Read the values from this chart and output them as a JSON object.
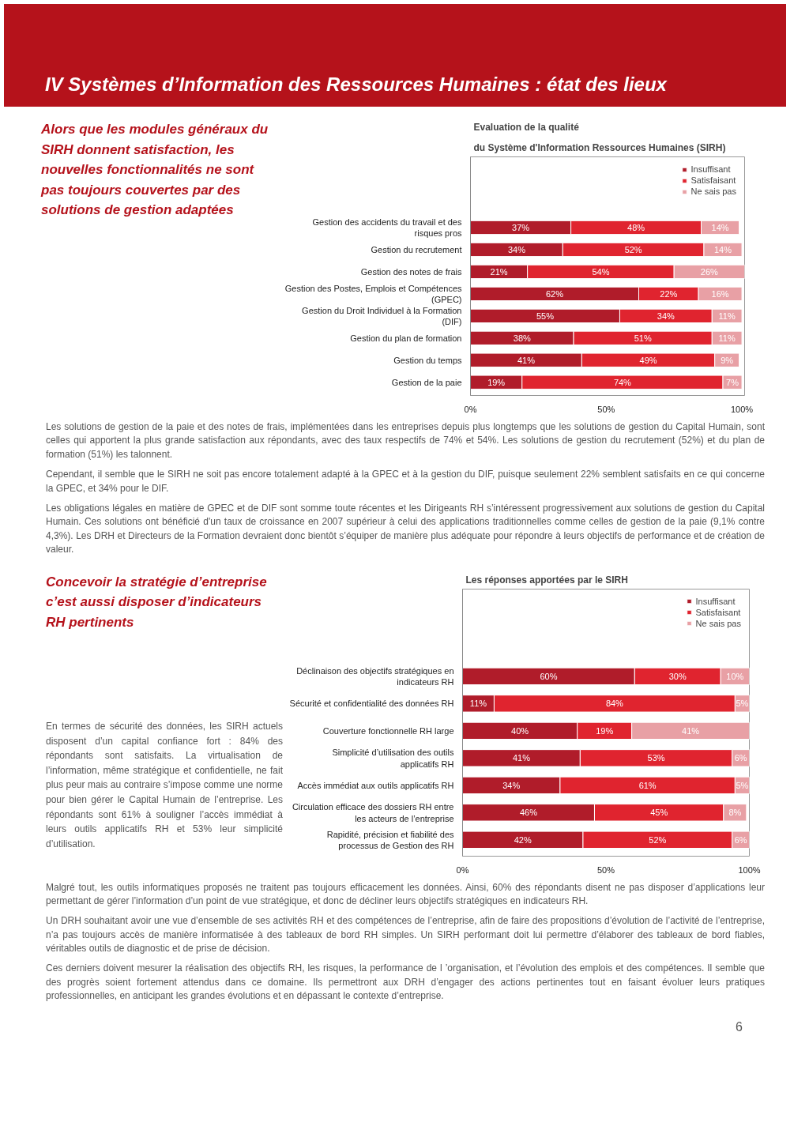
{
  "chart_data": [
    {
      "type": "bar",
      "orientation": "horizontal",
      "stacked": true,
      "grid": false,
      "legend": "top right",
      "title": "Evaluation de la qualité",
      "subtitle": "du Système d'Information Ressources Humaines (SIRH)",
      "categories": [
        "Gestion des accidents du travail et des risques pros",
        "Gestion du recrutement",
        "Gestion des notes de frais",
        "Gestion des Postes, Emplois  et Compétences (GPEC)",
        "Gestion du Droit Individuel à la Formation  (DIF)",
        "Gestion du plan de formation",
        "Gestion du temps",
        "Gestion de la paie"
      ],
      "xlim": [
        0,
        101
      ],
      "xticks": [
        {
          "value": 0,
          "label": "0%"
        },
        {
          "value": 50,
          "label": "50%"
        },
        {
          "value": 100,
          "label": "100%"
        }
      ],
      "series": [
        {
          "name": "Insuffisant",
          "color": "#b01c2a",
          "values": [
            37,
            34,
            21,
            62,
            55,
            38,
            41,
            19
          ],
          "value_labels": [
            "37%",
            "34%",
            "21%",
            "62%",
            "55%",
            "38%",
            "41%",
            "19%"
          ]
        },
        {
          "name": "Satisfaisant",
          "color": "#e0242f",
          "values": [
            48,
            52,
            54,
            22,
            34,
            51,
            49,
            74
          ],
          "value_labels": [
            "48%",
            "52%",
            "54%",
            "22%",
            "34%",
            "51%",
            "49%",
            "74%"
          ]
        },
        {
          "name": "Ne sais pas",
          "color": "#e8a0a5",
          "values": [
            14,
            14,
            26,
            16,
            11,
            11,
            9,
            7
          ],
          "value_labels": [
            "14%",
            "14%",
            "26%",
            "16%",
            "11%",
            "11%",
            "9%",
            "7%"
          ]
        }
      ],
      "annotations": [
        "IV      Systèmes d’Information des Ressources Humaines : état des lieux",
        "Alors que les modules généraux du SIRH donnent satisfaction, les nouvelles fonctionnalités ne sont pas toujours couvertes par des solutions de gestion adaptées",
        "Les solutions de gestion de la paie et des notes de frais, implémentées dans les entreprises depuis plus longtemps que les solutions de gestion du Capital Humain, sont celles qui apportent la plus grande satisfaction aux répondants, avec des taux respectifs de 74% et 54%. Les solutions de gestion du recrutement (52%) et du plan de formation (51%) les talonnent.",
        "Cependant, il semble que le SIRH ne soit pas encore totalement adapté à la GPEC et à la gestion du DIF, puisque seulement 22% semblent satisfaits en ce qui concerne la GPEC, et 34% pour le DIF.",
        "Les obligations légales en matière de GPEC et de DIF sont somme toute récentes et les Dirigeants RH s’intéressent progressivement aux solutions de gestion du Capital Humain. Ces solutions ont bénéficié d'un taux de croissance en 2007 supérieur à celui des applications traditionnelles comme celles de gestion de la paie (9,1% contre 4,3%). Les DRH et Directeurs de la Formation devraient donc bientôt s’équiper de manière plus adéquate pour répondre à leurs objectifs de performance et de création de valeur."
      ]
    },
    {
      "type": "bar",
      "orientation": "horizontal",
      "stacked": true,
      "grid": false,
      "legend": "top right",
      "title": "Les réponses apportées par le SIRH",
      "categories": [
        "Déclinaison des objectifs stratégiques en indicateurs RH",
        "Sécurité et confidentialité des données RH",
        "Couverture fonctionnelle RH large",
        "Simplicité d’utilisation des outils applicatifs RH",
        "Accès immédiat aux outils applicatifs RH",
        "Circulation efficace des dossiers RH entre les acteurs de l’entreprise",
        "Rapidité, précision et fiabilité des processus de Gestion des RH"
      ],
      "xlim": [
        0,
        100
      ],
      "xticks": [
        {
          "value": 0,
          "label": "0%"
        },
        {
          "value": 50,
          "label": "50%"
        },
        {
          "value": 100,
          "label": "100%"
        }
      ],
      "series": [
        {
          "name": "Insuffisant",
          "color": "#b01c2a",
          "values": [
            60,
            11,
            40,
            41,
            34,
            46,
            42
          ],
          "value_labels": [
            "60%",
            "11%",
            "40%",
            "41%",
            "34%",
            "46%",
            "42%"
          ]
        },
        {
          "name": "Satisfaisant",
          "color": "#e0242f",
          "values": [
            30,
            84,
            19,
            53,
            61,
            45,
            52
          ],
          "value_labels": [
            "30%",
            "84%",
            "19%",
            "53%",
            "61%",
            "45%",
            "52%"
          ]
        },
        {
          "name": "Ne sais pas",
          "color": "#e8a0a5",
          "values": [
            10,
            5,
            41,
            6,
            5,
            8,
            6
          ],
          "value_labels": [
            "10%",
            "5%",
            "41%",
            "6%",
            "5%",
            "8%",
            "6%"
          ]
        }
      ],
      "annotations": [
        "Concevoir la stratégie d’entreprise c’est aussi  disposer d’indicateurs RH pertinents",
        "En termes de sécurité des données, les SIRH actuels disposent d’un capital confiance fort : 84% des répondants sont satisfaits. La virtualisation de l’information, même stratégique et confidentielle, ne fait plus peur mais au contraire s’impose comme une norme pour bien gérer le Capital Humain de l’entreprise. Les répondants sont 61% à souligner l’accès immédiat à leurs outils applicatifs RH et 53% leur simplicité d’utilisation.",
        "Malgré tout, les outils informatiques proposés ne traitent pas toujours efficacement les données. Ainsi, 60% des répondants disent ne pas disposer d’applications leur permettant de gérer l’information d’un point de vue stratégique, et donc de décliner leurs objectifs stratégiques en indicateurs RH.",
        "Un DRH souhaitant avoir une vue d’ensemble de ses activités RH et des compétences de l’entreprise, afin de faire des propositions d’évolution de l’activité de l’entreprise, n’a pas toujours accès de manière informatisée à des tableaux de bord RH simples. Un SIRH performant doit lui permettre d’élaborer des tableaux de bord fiables, véritables outils de diagnostic et de prise de décision.",
        "Ces derniers doivent mesurer la réalisation des objectifs RH, les risques, la performance de l ’organisation, et l’évolution des emplois et des compétences. Il semble que des progrès soient fortement attendus dans ce domaine. Ils permettront aux DRH d’engager des actions pertinentes tout en faisant évoluer leurs pratiques professionnelles, en anticipant les grandes évolutions et en dépassant le contexte d’entreprise.",
        "6"
      ]
    }
  ]
}
